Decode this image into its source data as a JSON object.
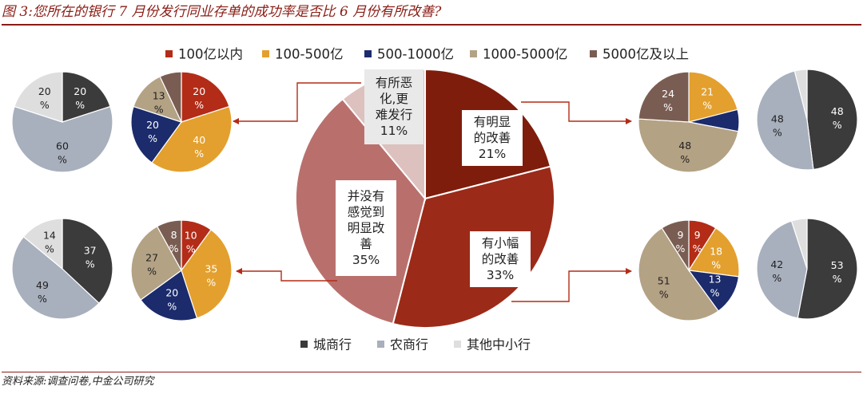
{
  "title": "图 3:您所在的银行 7 月份发行同业存单的成功率是否比 6 月份有所改善?",
  "source": "资料来源:调查问卷,中金公司研究",
  "colors": {
    "main": [
      "#7f1d0c",
      "#9c2a18",
      "#b9706d",
      "#ddc1bf"
    ],
    "size": [
      "#b32c17",
      "#e3a02e",
      "#1b2b6c",
      "#b4a285",
      "#7a5d52"
    ],
    "type": [
      "#3b3b3b",
      "#a8b0bd",
      "#dedede"
    ]
  },
  "chart_data": [
    {
      "id": "main",
      "type": "pie",
      "slices": [
        {
          "label": "有明显的改善",
          "lines": [
            "有明显",
            "的改善"
          ],
          "value": 21,
          "value_label": "21%"
        },
        {
          "label": "有小幅的改善",
          "lines": [
            "有小幅",
            "的改善"
          ],
          "value": 33,
          "value_label": "33%"
        },
        {
          "label": "并没有感觉到明显改善",
          "lines": [
            "并没有",
            "感觉到",
            "明显改",
            "善"
          ],
          "value": 35,
          "value_label": "35%"
        },
        {
          "label": "有所恶化,更难发行",
          "lines": [
            "有所恶",
            "化,更",
            "难发行"
          ],
          "value": 11,
          "value_label": "11%"
        }
      ]
    },
    {
      "id": "nochange-by-size",
      "type": "pie",
      "legend_group": "size",
      "values": [
        10,
        35,
        20,
        27,
        8
      ]
    },
    {
      "id": "nochange-by-type",
      "type": "pie",
      "legend_group": "type",
      "values": [
        37,
        49,
        14
      ]
    },
    {
      "id": "worse-by-size",
      "type": "pie",
      "legend_group": "size",
      "values": [
        20,
        40,
        20,
        13,
        7
      ]
    },
    {
      "id": "worse-by-type",
      "type": "pie",
      "legend_group": "type",
      "values": [
        20,
        60,
        20
      ]
    },
    {
      "id": "clear-by-size",
      "type": "pie",
      "legend_group": "size",
      "values": [
        0,
        21,
        7,
        48,
        24
      ]
    },
    {
      "id": "clear-by-type",
      "type": "pie",
      "legend_group": "type",
      "values": [
        48,
        48,
        4
      ]
    },
    {
      "id": "slight-by-size",
      "type": "pie",
      "legend_group": "size",
      "values": [
        9,
        18,
        13,
        51,
        9
      ]
    },
    {
      "id": "slight-by-type",
      "type": "pie",
      "legend_group": "type",
      "values": [
        53,
        42,
        5
      ]
    }
  ],
  "legend_size": [
    "100亿以内",
    "100-500亿",
    "500-1000亿",
    "1000-5000亿",
    "5000亿及以上"
  ],
  "legend_type": [
    "城商行",
    "农商行",
    "其他中小行"
  ]
}
